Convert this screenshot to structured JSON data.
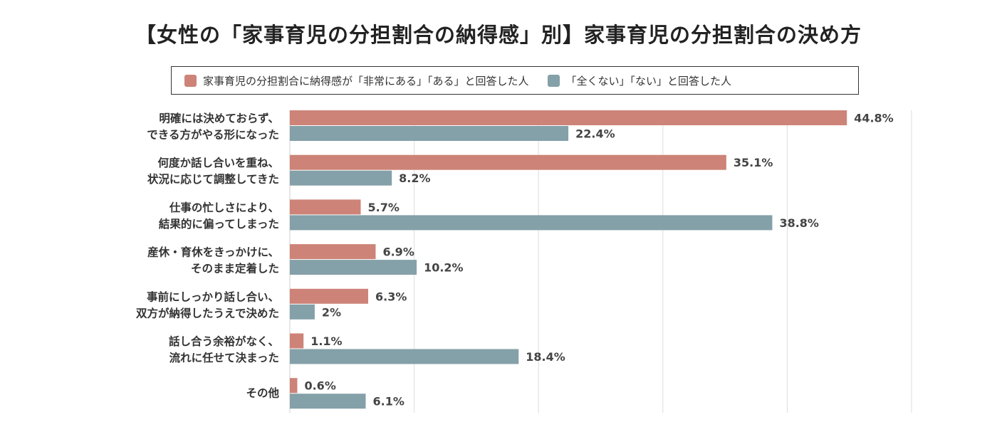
{
  "title": "【女性の「家事育児の分担割合の納得感」別】家事育児の分担割合の決め方",
  "colors": {
    "satisfied": "#cd8377",
    "unsatisfied": "#84a0a8",
    "grid": "#dddddd"
  },
  "chart_data": {
    "type": "bar",
    "orientation": "horizontal",
    "title": "【女性の「家事育児の分担割合の納得感」別】家事育児の分担割合の決め方",
    "categories": [
      [
        "明確には決めておらず、",
        "できる方がやる形になった"
      ],
      [
        "何度か話し合いを重ね、",
        "状況に応じて調整してきた"
      ],
      [
        "仕事の忙しさにより、",
        "結果的に偏ってしまった"
      ],
      [
        "産休・育休をきっかけに、",
        "そのまま定着した"
      ],
      [
        "事前にしっかり話し合い、",
        "双方が納得したうえで決めた"
      ],
      [
        "話し合う余裕がなく、",
        "流れに任せて決まった"
      ],
      [
        "その他"
      ]
    ],
    "series": [
      {
        "name": "家事育児の分担割合に納得感が「非常にある」「ある」と回答した人",
        "values": [
          44.8,
          35.1,
          5.7,
          6.9,
          6.3,
          1.1,
          0.6
        ],
        "labels": [
          "44.8%",
          "35.1%",
          "5.7%",
          "6.9%",
          "6.3%",
          "1.1%",
          "0.6%"
        ]
      },
      {
        "name": "「全くない」「ない」と回答した人",
        "values": [
          22.4,
          8.2,
          38.8,
          10.2,
          2,
          18.4,
          6.1
        ],
        "labels": [
          "22.4%",
          "8.2%",
          "38.8%",
          "10.2%",
          "2%",
          "18.4%",
          "6.1%"
        ]
      }
    ],
    "xlim": [
      0,
      50
    ],
    "grid": true,
    "legend_position": "top"
  }
}
